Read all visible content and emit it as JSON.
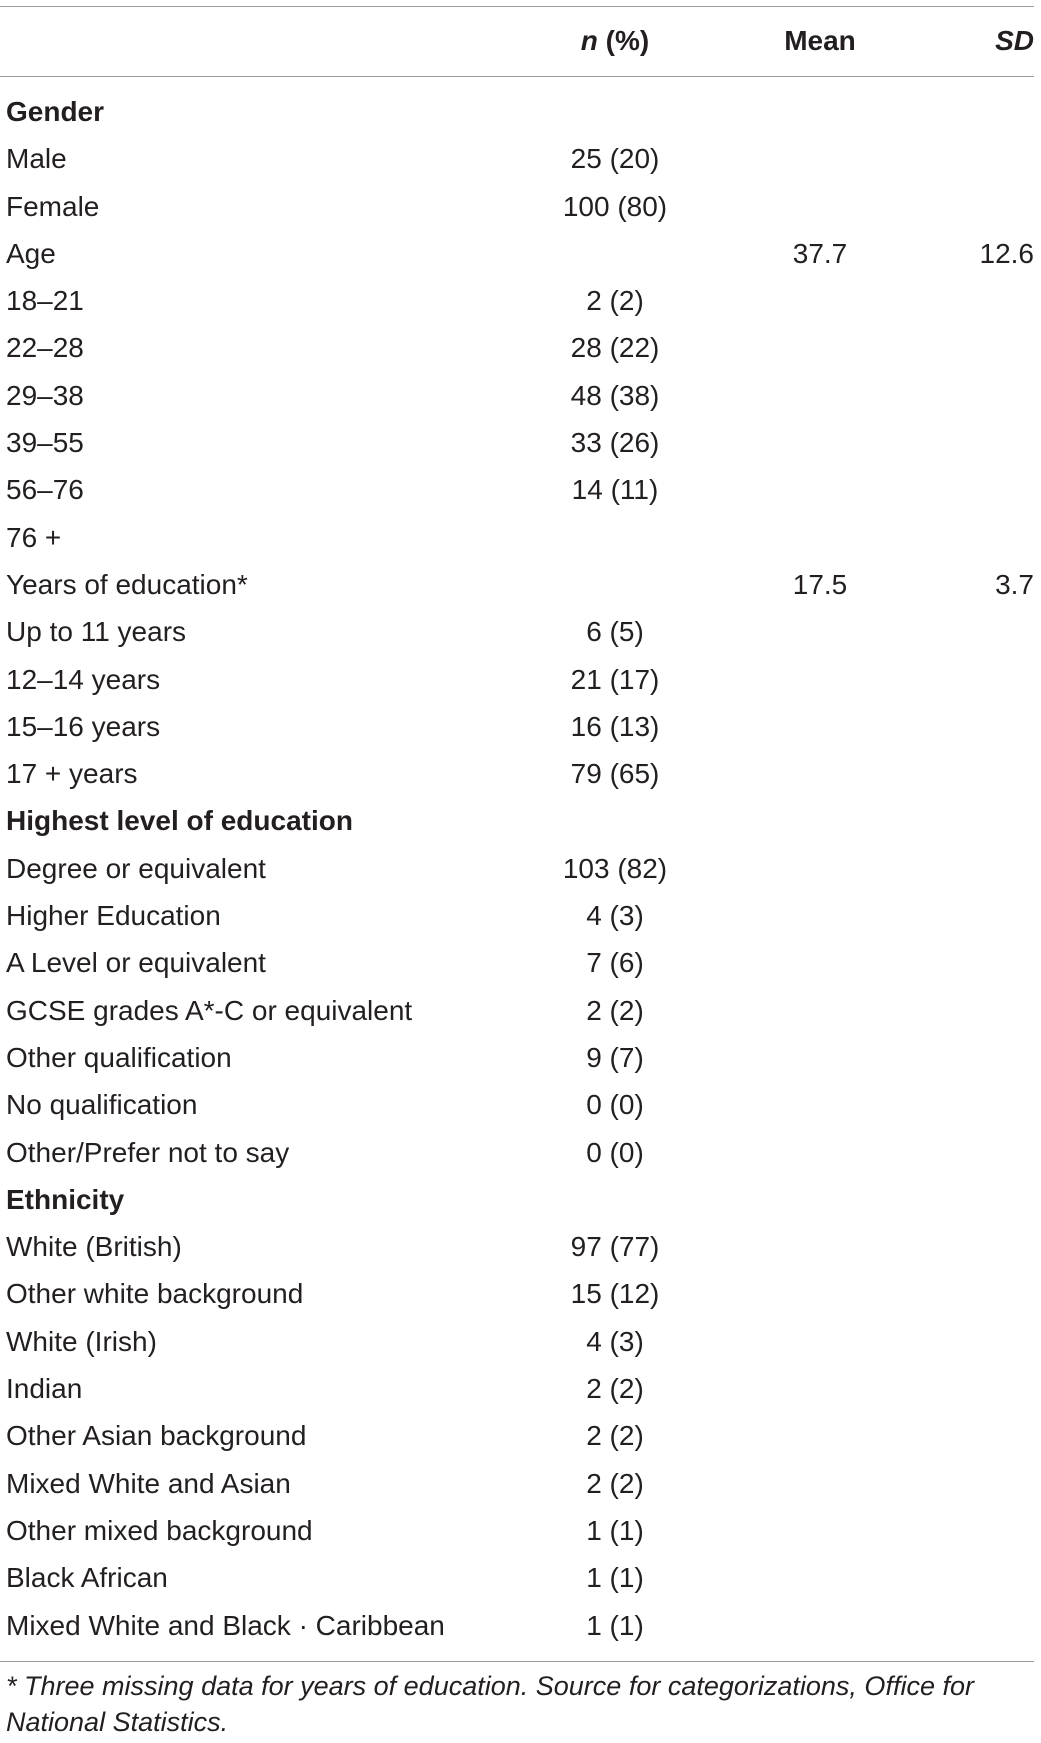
{
  "header": {
    "n_label_italic": "n",
    "n_label_rest": " (%)",
    "mean_label": "Mean",
    "sd_label": "SD"
  },
  "rows": [
    {
      "label": "Gender",
      "n": "",
      "mean": "",
      "sd": "",
      "section": true
    },
    {
      "label": "Male",
      "n": "25 (20)",
      "mean": "",
      "sd": ""
    },
    {
      "label": "Female",
      "n": "100 (80)",
      "mean": "",
      "sd": ""
    },
    {
      "label": "Age",
      "n": "",
      "mean": "37.7",
      "sd": "12.6"
    },
    {
      "label": "18–21",
      "n": "2 (2)",
      "mean": "",
      "sd": ""
    },
    {
      "label": "22–28",
      "n": "28 (22)",
      "mean": "",
      "sd": ""
    },
    {
      "label": "29–38",
      "n": "48 (38)",
      "mean": "",
      "sd": ""
    },
    {
      "label": "39–55",
      "n": "33 (26)",
      "mean": "",
      "sd": ""
    },
    {
      "label": "56–76",
      "n": "14 (11)",
      "mean": "",
      "sd": ""
    },
    {
      "label": "76 +",
      "n": "",
      "mean": "",
      "sd": ""
    },
    {
      "label": "Years of education*",
      "n": "",
      "mean": "17.5",
      "sd": "3.7"
    },
    {
      "label": "Up to 11 years",
      "n": "6 (5)",
      "mean": "",
      "sd": ""
    },
    {
      "label": "12–14 years",
      "n": "21 (17)",
      "mean": "",
      "sd": ""
    },
    {
      "label": "15–16 years",
      "n": "16 (13)",
      "mean": "",
      "sd": ""
    },
    {
      "label": "17 + years",
      "n": "79 (65)",
      "mean": "",
      "sd": ""
    },
    {
      "label": "Highest level of education",
      "n": "",
      "mean": "",
      "sd": "",
      "section": true
    },
    {
      "label": "Degree or equivalent",
      "n": "103 (82)",
      "mean": "",
      "sd": ""
    },
    {
      "label": "Higher Education",
      "n": "4 (3)",
      "mean": "",
      "sd": ""
    },
    {
      "label": "A Level or equivalent",
      "n": "7 (6)",
      "mean": "",
      "sd": ""
    },
    {
      "label": "GCSE grades A*-C or equivalent",
      "n": "2 (2)",
      "mean": "",
      "sd": ""
    },
    {
      "label": "Other qualification",
      "n": "9 (7)",
      "mean": "",
      "sd": ""
    },
    {
      "label": "No qualification",
      "n": "0 (0)",
      "mean": "",
      "sd": ""
    },
    {
      "label": "Other/Prefer not to say",
      "n": "0 (0)",
      "mean": "",
      "sd": ""
    },
    {
      "label": "Ethnicity",
      "n": "",
      "mean": "",
      "sd": "",
      "section": true
    },
    {
      "label": "White (British)",
      "n": "97 (77)",
      "mean": "",
      "sd": ""
    },
    {
      "label": "Other white background",
      "n": "15 (12)",
      "mean": "",
      "sd": ""
    },
    {
      "label": "White (Irish)",
      "n": "4 (3)",
      "mean": "",
      "sd": ""
    },
    {
      "label": "Indian",
      "n": "2 (2)",
      "mean": "",
      "sd": ""
    },
    {
      "label": "Other Asian background",
      "n": "2 (2)",
      "mean": "",
      "sd": ""
    },
    {
      "label": "Mixed White and Asian",
      "n": "2 (2)",
      "mean": "",
      "sd": ""
    },
    {
      "label": "Other mixed background",
      "n": "1 (1)",
      "mean": "",
      "sd": ""
    },
    {
      "label": "Black African",
      "n": "1 (1)",
      "mean": "",
      "sd": ""
    },
    {
      "label": "Mixed White and Black · Caribbean",
      "n": "1 (1)",
      "mean": "",
      "sd": ""
    }
  ],
  "footnote": "* Three missing data for years of education. Source for categorizations, Office for National Statistics."
}
